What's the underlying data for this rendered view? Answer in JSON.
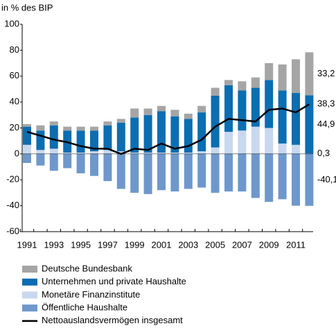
{
  "chart_data": {
    "type": "bar",
    "stacked": true,
    "y_axis_label": "in % des BIP",
    "categories": [
      "1991",
      null,
      "1993",
      null,
      "1995",
      null,
      "1997",
      null,
      "1999",
      null,
      "2001",
      null,
      "2003",
      null,
      "2005",
      null,
      "2007",
      null,
      "2009",
      null,
      "2011",
      null
    ],
    "ylim": [
      -60,
      100
    ],
    "yticks": [
      -60,
      -40,
      -20,
      0,
      20,
      40,
      60,
      80,
      100
    ],
    "series": [
      {
        "name": "Deutsche Bundesbank",
        "color": "#a5a5a5",
        "values": [
          2,
          4,
          3,
          3,
          3,
          3,
          3,
          3,
          7,
          5,
          4,
          5,
          4,
          5,
          6,
          4,
          7,
          8,
          13,
          20,
          26,
          33.2
        ],
        "value_labels": [
          null,
          null,
          null,
          null,
          null,
          null,
          null,
          null,
          null,
          null,
          null,
          null,
          null,
          null,
          null,
          null,
          null,
          null,
          null,
          null,
          null,
          "33,2"
        ]
      },
      {
        "name": "Unternehmen und private Haushalte",
        "color": "#0b6db2",
        "values": [
          14,
          15,
          18,
          17,
          17,
          16,
          19,
          22,
          27,
          29,
          32,
          28,
          26,
          30,
          40,
          36,
          31,
          30,
          37,
          41,
          40,
          44.9
        ],
        "value_labels": [
          null,
          null,
          null,
          null,
          null,
          null,
          null,
          null,
          null,
          null,
          null,
          null,
          null,
          null,
          null,
          null,
          null,
          null,
          null,
          null,
          null,
          "44,9"
        ]
      },
      {
        "name": "Monetäre Finanzinstitute",
        "color": "#c8d8ee",
        "values": [
          7,
          3,
          4,
          1,
          1,
          2,
          3,
          2,
          1,
          1,
          1,
          1,
          1,
          2,
          5,
          17,
          18,
          21,
          20,
          8,
          7,
          0.3
        ],
        "value_labels": [
          null,
          null,
          null,
          null,
          null,
          null,
          null,
          null,
          null,
          null,
          null,
          null,
          null,
          null,
          null,
          null,
          null,
          null,
          null,
          null,
          null,
          "0,3"
        ]
      },
      {
        "name": "Öffentliche Haushalte",
        "color": "#6e98cc",
        "values": [
          -7,
          -9,
          -13,
          -11,
          -15,
          -17,
          -21,
          -27,
          -30,
          -31,
          -28,
          -29,
          -27,
          -26,
          -30,
          -29,
          -29,
          -34,
          -37,
          -35,
          -40,
          -40.1
        ],
        "value_labels": [
          null,
          null,
          null,
          null,
          null,
          null,
          null,
          null,
          null,
          null,
          null,
          null,
          null,
          null,
          null,
          null,
          null,
          null,
          null,
          null,
          null,
          "-40,1"
        ]
      },
      {
        "name": "Nettoauslandsvermögen insgesamt",
        "type": "line",
        "color": "#000000",
        "values": [
          17,
          14,
          11,
          9,
          6,
          4,
          4,
          0,
          4,
          3,
          8,
          4,
          6,
          11,
          21,
          27,
          26,
          25,
          34,
          35,
          32,
          38.3
        ],
        "value_labels": [
          null,
          null,
          null,
          null,
          null,
          null,
          null,
          null,
          null,
          null,
          null,
          null,
          null,
          null,
          null,
          null,
          null,
          null,
          null,
          null,
          null,
          "38,3"
        ]
      }
    ]
  }
}
